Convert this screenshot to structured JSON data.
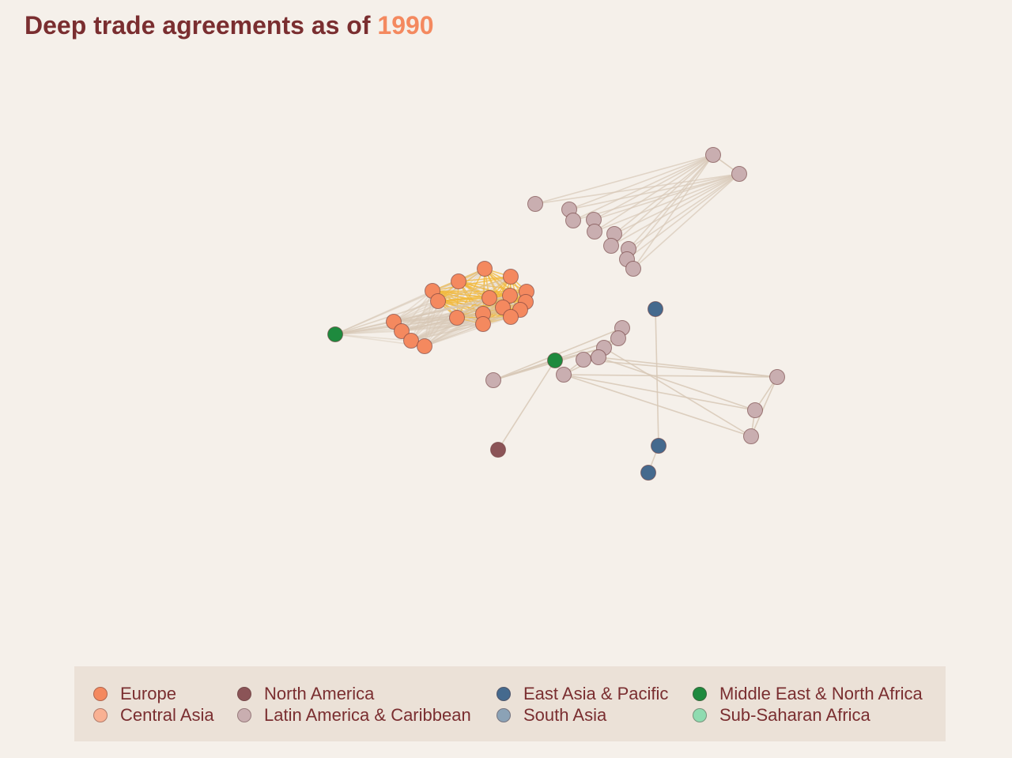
{
  "title": {
    "prefix": "Deep trade agreements as of ",
    "year": "1990"
  },
  "colors": {
    "background": "#f5f0ea",
    "title": "#7a2e30",
    "year": "#f4895f",
    "edge": "#d7c8b6",
    "edge_europe": "#f2b83a",
    "legend_background": "#ebe1d7"
  },
  "regions": [
    {
      "key": "europe",
      "label": "Europe",
      "color": "#f4895f"
    },
    {
      "key": "central_asia",
      "label": "Central Asia",
      "color": "#f9b193"
    },
    {
      "key": "north_america",
      "label": "North America",
      "color": "#8b5457"
    },
    {
      "key": "latam",
      "label": "Latin America & Caribbean",
      "color": "#c9aeb0"
    },
    {
      "key": "east_asia",
      "label": "East Asia & Pacific",
      "color": "#456a8e"
    },
    {
      "key": "south_asia",
      "label": "South Asia",
      "color": "#8ba2b6"
    },
    {
      "key": "mena",
      "label": "Middle East & North Africa",
      "color": "#1e8a3e"
    },
    {
      "key": "ssa",
      "label": "Sub-Saharan Africa",
      "color": "#8fdbb0"
    }
  ]
}
